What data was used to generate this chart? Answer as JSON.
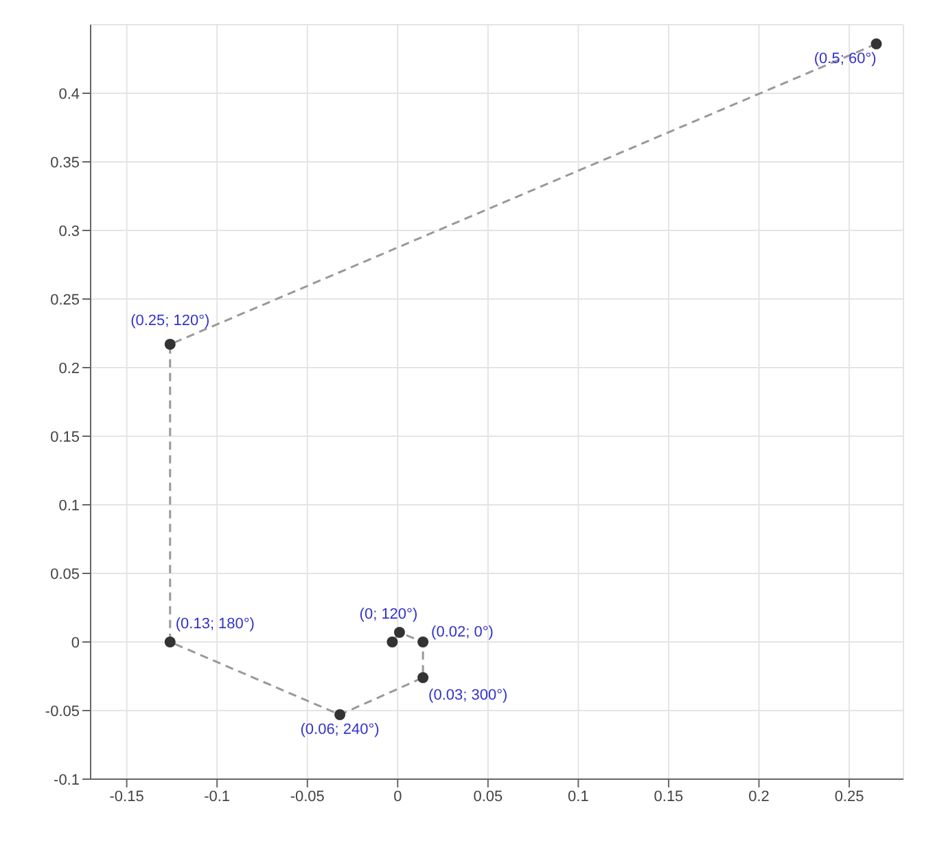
{
  "chart_data": {
    "type": "scatter",
    "xlim": [
      -0.17,
      0.28
    ],
    "ylim": [
      -0.1,
      0.45
    ],
    "xticks": [
      -0.15,
      -0.1,
      -0.05,
      0,
      0.05,
      0.1,
      0.15,
      0.2,
      0.25
    ],
    "yticks": [
      -0.1,
      -0.05,
      0,
      0.05,
      0.1,
      0.15,
      0.2,
      0.25,
      0.3,
      0.35,
      0.4
    ],
    "grid": true,
    "legend": false,
    "series": [
      {
        "type": "line",
        "color": "#999999",
        "line_style": "dashed",
        "x": [
          0.265,
          -0.126,
          -0.126,
          -0.032,
          0.014,
          0.014,
          0.001,
          -0.003
        ],
        "values": [
          0.436,
          0.217,
          0,
          -0.053,
          -0.026,
          0,
          0.007,
          0
        ]
      },
      {
        "color": "#333333",
        "marker": "circle",
        "x": [
          0.265,
          -0.126,
          -0.126,
          -0.032,
          0.014,
          0.014,
          0.001,
          -0.003
        ],
        "values": [
          0.436,
          0.217,
          0,
          -0.053,
          -0.026,
          0,
          0.007,
          0
        ]
      }
    ],
    "annotations": [
      {
        "text": "(0.5; 60°)",
        "x": 0.265,
        "y": 0.436
      },
      {
        "text": "(0.25; 120°)",
        "x": -0.126,
        "y": 0.217
      },
      {
        "text": "(0.13; 180°)",
        "x": -0.126,
        "y": 0
      },
      {
        "text": "(0.06; 240°)",
        "x": -0.032,
        "y": -0.053
      },
      {
        "text": "(0.03; 300°)",
        "x": 0.014,
        "y": -0.026
      },
      {
        "text": "(0.02; 0°)",
        "x": 0.014,
        "y": 0
      },
      {
        "text": "(0; 120°)",
        "x": 0.001,
        "y": 0.007
      }
    ]
  }
}
